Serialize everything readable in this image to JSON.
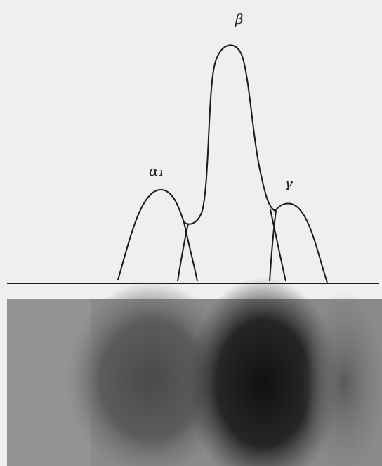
{
  "peaks": [
    {
      "label": "α₁"
    },
    {
      "label": "β"
    },
    {
      "label": "γ"
    }
  ]
}
